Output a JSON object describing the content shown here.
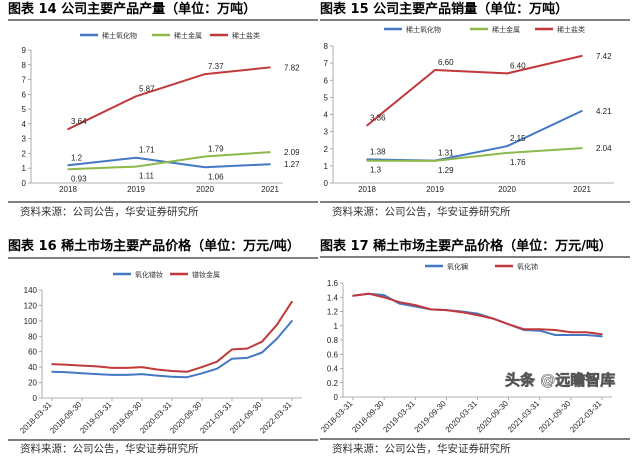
{
  "source_text": "资料来源：公司公告，华安证券研究所",
  "watermark": "头条 @远瞻智库",
  "colors": {
    "blue": "#4478c4",
    "green": "#8db84a",
    "red": "#c0393b"
  },
  "chart_data": [
    {
      "type": "line",
      "title": "图表 14  公司主要产品产量（单位：万吨）",
      "categories": [
        "2018",
        "2019",
        "2020",
        "2021"
      ],
      "ylim": [
        0,
        9
      ],
      "yticks": [
        0,
        1,
        2,
        3,
        4,
        5,
        6,
        7,
        8,
        9
      ],
      "grid": false,
      "legend": "top",
      "series": [
        {
          "name": "稀土氧化物",
          "color": "#4478c4",
          "values": [
            1.2,
            1.71,
            1.06,
            1.27
          ],
          "labels": [
            "1.2",
            "1.71",
            "1.06",
            "1.27"
          ]
        },
        {
          "name": "稀土金属",
          "color": "#8db84a",
          "values": [
            0.93,
            1.11,
            1.79,
            2.09
          ],
          "labels": [
            "0.93",
            "1.11",
            "1.79",
            "2.09"
          ]
        },
        {
          "name": "稀土盐类",
          "color": "#c0393b",
          "values": [
            3.64,
            5.87,
            7.37,
            7.82
          ],
          "labels": [
            "3.64",
            "5.87",
            "7.37",
            "7.82"
          ]
        }
      ]
    },
    {
      "type": "line",
      "title": "图表 15  公司主要产品销量（单位：万吨）",
      "categories": [
        "2018",
        "2019",
        "2020",
        "2021"
      ],
      "ylim": [
        0,
        8
      ],
      "yticks": [
        0,
        1,
        2,
        3,
        4,
        5,
        6,
        7,
        8
      ],
      "grid": false,
      "legend": "top",
      "series": [
        {
          "name": "稀土氧化物",
          "color": "#4478c4",
          "values": [
            1.38,
            1.31,
            2.15,
            4.21
          ],
          "labels": [
            "1.38",
            "1.31",
            "2.15",
            "4.21"
          ]
        },
        {
          "name": "稀土金属",
          "color": "#8db84a",
          "values": [
            1.3,
            1.29,
            1.76,
            2.04
          ],
          "labels": [
            "1.3",
            "1.29",
            "1.76",
            "2.04"
          ]
        },
        {
          "name": "稀土盐类",
          "color": "#c0393b",
          "values": [
            3.36,
            6.6,
            6.4,
            7.42
          ],
          "labels": [
            "3.36",
            "6.60",
            "6.40",
            "7.42"
          ]
        }
      ]
    },
    {
      "type": "line",
      "title": "图表 16  稀土市场主要产品价格（单位：万元/吨）",
      "categories": [
        "2018-03-31",
        "2018-06-30",
        "2018-09-30",
        "2018-12-31",
        "2019-03-31",
        "2019-06-30",
        "2019-09-30",
        "2019-12-31",
        "2020-03-31",
        "2020-06-30",
        "2020-09-30",
        "2020-12-31",
        "2021-03-31",
        "2021-06-30",
        "2021-09-30",
        "2021-12-31",
        "2022-03-31"
      ],
      "xticklabels": [
        "2018-03-31",
        "2018-09-30",
        "2019-03-31",
        "2019-09-30",
        "2020-03-31",
        "2020-09-30",
        "2021-03-31",
        "2021-09-30",
        "2022-03-31"
      ],
      "ylim": [
        0,
        140
      ],
      "yticks": [
        0,
        20,
        40,
        60,
        80,
        100,
        120,
        140
      ],
      "grid": false,
      "legend": "top",
      "series": [
        {
          "name": "氧化镨钕",
          "color": "#4478c4",
          "values": [
            34,
            33.5,
            32,
            31,
            30,
            30,
            31,
            29,
            27.5,
            27,
            32,
            38,
            51,
            52,
            59,
            77,
            100
          ]
        },
        {
          "name": "镨钕金属",
          "color": "#c0393b",
          "values": [
            44,
            43,
            42,
            41,
            39,
            39,
            40,
            37,
            35,
            34,
            40,
            47,
            63,
            64,
            73,
            95,
            125
          ]
        }
      ]
    },
    {
      "type": "line",
      "title": "图表 17  稀土市场主要产品价格（单位：万元/吨）",
      "categories": [
        "2018-03-31",
        "2018-06-30",
        "2018-09-30",
        "2018-12-31",
        "2019-03-31",
        "2019-06-30",
        "2019-09-30",
        "2019-12-31",
        "2020-03-31",
        "2020-06-30",
        "2020-09-30",
        "2020-12-31",
        "2021-03-31",
        "2021-06-30",
        "2021-09-30",
        "2021-12-31",
        "2022-03-31"
      ],
      "xticklabels": [
        "2018-03-31",
        "2018-09-30",
        "2019-03-31",
        "2019-09-30",
        "2020-03-31",
        "2020-09-30",
        "2021-03-31",
        "2021-09-30",
        "2022-03-31"
      ],
      "ylim": [
        0,
        1.6
      ],
      "yticks": [
        0,
        0.2,
        0.4,
        0.6,
        0.8,
        1,
        1.2,
        1.4,
        1.6
      ],
      "grid": false,
      "legend": "top",
      "series": [
        {
          "name": "氧化镧",
          "color": "#4478c4",
          "values": [
            1.42,
            1.45,
            1.43,
            1.31,
            1.27,
            1.23,
            1.22,
            1.2,
            1.17,
            1.1,
            1.02,
            0.94,
            0.93,
            0.87,
            0.87,
            0.87,
            0.85
          ]
        },
        {
          "name": "氧化铈",
          "color": "#c0393b",
          "values": [
            1.42,
            1.45,
            1.4,
            1.33,
            1.29,
            1.23,
            1.22,
            1.19,
            1.15,
            1.1,
            1.02,
            0.95,
            0.95,
            0.94,
            0.91,
            0.91,
            0.88
          ]
        }
      ]
    }
  ]
}
